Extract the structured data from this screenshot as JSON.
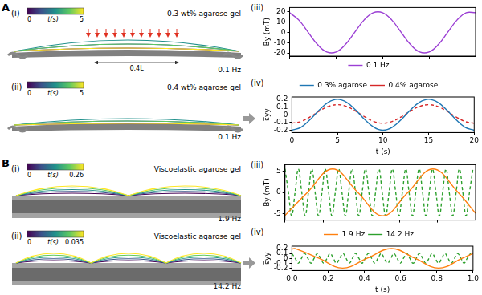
{
  "groups": [
    {
      "label": "A",
      "image_panels": [
        {
          "panel": "(i)",
          "caption": "0.3 wt% agarose gel",
          "frequency": "0.1 Hz",
          "colorbar": {
            "title": "t(s)",
            "range": [
              0,
              5
            ]
          },
          "annotation": "0.4L"
        },
        {
          "panel": "(ii)",
          "caption": "0.4 wt% agarose gel",
          "frequency": "0.1 Hz",
          "colorbar": {
            "title": "t(s)",
            "range": [
              0,
              5
            ]
          }
        }
      ]
    },
    {
      "label": "B",
      "image_panels": [
        {
          "panel": "(i)",
          "caption": "Viscoelastic agarose gel",
          "frequency": "1.9 Hz",
          "colorbar": {
            "title": "t(s)",
            "range": [
              0,
              0.26
            ]
          }
        },
        {
          "panel": "(ii)",
          "caption": "Viscoelastic agarose gel",
          "frequency": "14.2 Hz",
          "colorbar": {
            "title": "t(s)",
            "range": [
              0,
              0.035
            ]
          }
        }
      ]
    }
  ],
  "chart_data": [
    {
      "panel": "(iii)",
      "type": "line",
      "ylabel": "By (mT)",
      "x": [
        0,
        1,
        2,
        3,
        4,
        5,
        6,
        7,
        8,
        9,
        10,
        11,
        12,
        13,
        14,
        15,
        16,
        17,
        18,
        19,
        20
      ],
      "series": [
        {
          "name": "0.1 Hz",
          "color": "#9b3fd4",
          "line_style": "solid",
          "values": [
            19,
            11.8,
            0,
            -11.8,
            -19,
            -19,
            -11.8,
            0,
            11.8,
            19,
            19,
            11.8,
            0,
            -11.8,
            -19,
            -19,
            -11.8,
            0,
            11.8,
            19,
            19
          ]
        }
      ],
      "xlim": [
        0,
        20
      ],
      "xticks": [
        0,
        5,
        10,
        15,
        20
      ],
      "ylim": [
        -23,
        24
      ],
      "yticks": [
        -20,
        -10,
        0,
        10,
        20
      ],
      "grid": false,
      "legend": "bottom",
      "tick_labels": "y"
    },
    {
      "panel": "(iv)",
      "type": "line",
      "xlabel": "t (s)",
      "ylabel": "ε̅yy",
      "x": [
        0,
        1,
        2,
        3,
        4,
        5,
        6,
        7,
        8,
        9,
        10,
        11,
        12,
        13,
        14,
        15,
        16,
        17,
        18,
        19,
        20
      ],
      "series": [
        {
          "name": "0.3% agarose",
          "color": "#1f77b4",
          "line_style": "solid",
          "values": [
            -0.2,
            -0.162,
            -0.062,
            0.062,
            0.162,
            0.2,
            0.162,
            0.062,
            -0.062,
            -0.162,
            -0.2,
            -0.162,
            -0.062,
            0.062,
            0.162,
            0.2,
            0.162,
            0.062,
            -0.062,
            -0.162,
            -0.2
          ]
        },
        {
          "name": "0.4% agarose",
          "color": "#d62728",
          "line_style": "dashed",
          "values": [
            -0.11,
            -0.087,
            -0.027,
            0.047,
            0.107,
            0.13,
            0.107,
            0.047,
            -0.027,
            -0.087,
            -0.11,
            -0.087,
            -0.027,
            0.047,
            0.107,
            0.13,
            0.107,
            0.047,
            -0.027,
            -0.087,
            -0.11
          ]
        }
      ],
      "xlim": [
        0,
        20
      ],
      "xticks": [
        0,
        5,
        10,
        15,
        20
      ],
      "ylim": [
        -0.23,
        0.23
      ],
      "yticks": [
        -0.2,
        -0.1,
        0,
        0.1,
        0.2
      ],
      "grid": false,
      "legend": "top"
    },
    {
      "panel": "(iii)",
      "type": "line",
      "ylabel": "By (mT)",
      "series": [
        {
          "name": "1.9 Hz",
          "color": "#ff7f0e",
          "line_style": "solid",
          "x": [
            0,
            0.118,
            0.25,
            0.382,
            0.513,
            0.645,
            0.776,
            0.908,
            1.0
          ],
          "values": [
            -5.4,
            0,
            5.5,
            0,
            -5.5,
            0,
            5.5,
            0,
            -4.9
          ]
        },
        {
          "name": "14.2 Hz",
          "color": "#2ca02c",
          "line_style": "dashed",
          "x": [
            0,
            0.018,
            0.035,
            0.053,
            0.07,
            0.088,
            0.106,
            0.123,
            0.141,
            0.158,
            0.176,
            0.194,
            0.211,
            0.229,
            0.246,
            0.264,
            0.282,
            0.299,
            0.317,
            0.334,
            0.352,
            0.37,
            0.387,
            0.405,
            0.422,
            0.44,
            0.458,
            0.475,
            0.493,
            0.51,
            0.528,
            0.546,
            0.563,
            0.581,
            0.598,
            0.616,
            0.634,
            0.651,
            0.669,
            0.686,
            0.704,
            0.722,
            0.739,
            0.757,
            0.774,
            0.792,
            0.81,
            0.827,
            0.845,
            0.862,
            0.88,
            0.898,
            0.915,
            0.933,
            0.95,
            0.968,
            0.986
          ],
          "values": [
            5.5,
            0,
            -5.5,
            0,
            5.5,
            0,
            -5.5,
            0,
            5.5,
            0,
            -5.5,
            0,
            5.5,
            0,
            -5.5,
            0,
            5.5,
            0,
            -5.5,
            0,
            5.5,
            0,
            -5.5,
            0,
            5.5,
            0,
            -5.5,
            0,
            5.5,
            0,
            -5.5,
            0,
            5.5,
            0,
            -5.5,
            0,
            5.5,
            0,
            -5.5,
            0,
            5.5,
            0,
            -5.5,
            0,
            5.5,
            0,
            -5.5,
            0,
            5.5,
            0,
            -5.5,
            0,
            5.5,
            0,
            -5.5,
            0,
            5.5
          ]
        }
      ],
      "xlim": [
        0,
        1
      ],
      "xticks": [
        {
          "value": 0,
          "label": "0.0"
        },
        0.2,
        0.4,
        0.6,
        0.8,
        {
          "value": 1,
          "label": "1.0"
        }
      ],
      "ylim": [
        -6.5,
        6.5
      ],
      "yticks": [
        -5,
        0,
        5
      ],
      "grid": false,
      "tick_labels": "y"
    },
    {
      "panel": "(iv)",
      "type": "line",
      "xlabel": "t (s)",
      "ylabel": "ε̅yy",
      "series": [
        {
          "name": "1.9 Hz",
          "color": "#ff7f0e",
          "line_style": "solid",
          "x": [
            0,
            0.02,
            0.15,
            0.28,
            0.415,
            0.55,
            0.68,
            0.81,
            0.94,
            1.0
          ],
          "values": [
            0.19,
            0.2,
            0,
            -0.2,
            0,
            0.2,
            0,
            -0.2,
            0,
            0.1
          ]
        },
        {
          "name": "14.2 Hz",
          "color": "#2ca02c",
          "line_style": "dashed",
          "x": [
            0,
            0.018,
            0.035,
            0.053,
            0.07,
            0.088,
            0.106,
            0.123,
            0.141,
            0.158,
            0.176,
            0.194,
            0.211,
            0.229,
            0.246,
            0.264,
            0.282,
            0.299,
            0.317,
            0.334,
            0.352,
            0.37,
            0.387,
            0.405,
            0.422,
            0.44,
            0.458,
            0.475,
            0.493,
            0.51,
            0.528,
            0.546,
            0.563,
            0.581,
            0.598,
            0.616,
            0.634,
            0.651,
            0.669,
            0.686,
            0.704,
            0.722,
            0.739,
            0.757,
            0.774,
            0.792,
            0.81,
            0.827,
            0.845,
            0.862,
            0.88,
            0.898,
            0.915,
            0.933,
            0.95,
            0.968,
            0.986
          ],
          "values": [
            0.1,
            0,
            -0.1,
            0,
            0.1,
            0,
            -0.1,
            0,
            0.1,
            0,
            -0.1,
            0,
            0.1,
            0,
            -0.1,
            0,
            0.1,
            0,
            -0.1,
            0,
            0.1,
            0,
            -0.1,
            0,
            0.1,
            0,
            -0.1,
            0,
            0.1,
            0,
            -0.1,
            0,
            0.1,
            0,
            -0.1,
            0,
            0.1,
            0,
            -0.1,
            0,
            0.1,
            0,
            -0.1,
            0,
            0.1,
            0,
            -0.1,
            0,
            0.1,
            0,
            -0.1,
            0,
            0.1,
            0,
            -0.1,
            0,
            0.1
          ]
        }
      ],
      "xlim": [
        0,
        1
      ],
      "xticks": [
        {
          "value": 0,
          "label": "0.0"
        },
        0.2,
        0.4,
        0.6,
        0.8,
        {
          "value": 1,
          "label": "1.0"
        }
      ],
      "ylim": [
        -0.25,
        0.25
      ],
      "yticks": [
        -0.2,
        -0.1,
        0,
        0.1,
        0.2
      ],
      "grid": false,
      "legend": "top"
    }
  ]
}
